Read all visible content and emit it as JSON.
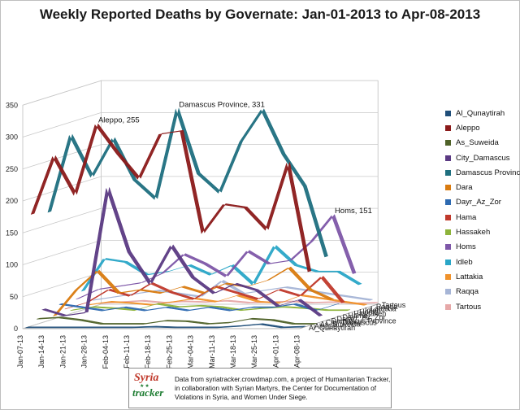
{
  "chart_data": {
    "type": "line",
    "title": "Weekly Reported Deaths by Governate: Jan-01-2013 to Apr-08-2013",
    "categories": [
      "Jan-07-13",
      "Jan-14-13",
      "Jan-21-13",
      "Jan-28-13",
      "Feb-04-13",
      "Feb-11-13",
      "Feb-18-13",
      "Feb-25-13",
      "Mar-04-13",
      "Mar-11-13",
      "Mar-18-13",
      "Mar-25-13",
      "Apr-01-13",
      "Apr-08-13"
    ],
    "yticks": [
      0,
      50,
      100,
      150,
      200,
      250,
      300,
      350
    ],
    "ylim": [
      0,
      350
    ],
    "grid": true,
    "legend_position": "right",
    "series": [
      {
        "name": "Al_Qunaytirah",
        "color": "#1f4e79",
        "values": [
          0,
          0,
          0,
          0,
          0,
          0,
          1,
          0,
          0,
          0,
          2,
          5,
          0,
          1
        ]
      },
      {
        "name": "Aleppo",
        "color": "#8b1a1a",
        "values": [
          175,
          265,
          205,
          315,
          270,
          230,
          300,
          305,
          145,
          190,
          185,
          150,
          255,
          85
        ]
      },
      {
        "name": "As_Suweida",
        "color": "#4f6228",
        "values": [
          8,
          10,
          6,
          0,
          0,
          0,
          5,
          4,
          0,
          2,
          8,
          6,
          0,
          0
        ]
      },
      {
        "name": "City_Damascus",
        "color": "#5b3a83",
        "values": [
          20,
          10,
          15,
          210,
          110,
          60,
          120,
          70,
          45,
          60,
          50,
          25,
          35,
          10
        ]
      },
      {
        "name": "Damascus Province",
        "color": "#1f6f7f",
        "values": [
          170,
          290,
          225,
          285,
          220,
          190,
          331,
          230,
          200,
          280,
          330,
          260,
          210,
          100
        ]
      },
      {
        "name": "Dara",
        "color": "#d97b10",
        "values": [
          5,
          45,
          75,
          40,
          45,
          40,
          50,
          40,
          55,
          50,
          60,
          80,
          45,
          30
        ]
      },
      {
        "name": "Dayr_Az_Zor",
        "color": "#2e6ab1",
        "values": [
          20,
          15,
          10,
          15,
          10,
          15,
          10,
          15,
          10,
          15,
          15,
          20,
          10,
          20
        ]
      },
      {
        "name": "Hama",
        "color": "#c0392b",
        "values": [
          10,
          20,
          40,
          30,
          50,
          35,
          25,
          45,
          35,
          25,
          40,
          30,
          60,
          20
        ]
      },
      {
        "name": "Hassakeh",
        "color": "#8db33a",
        "values": [
          5,
          10,
          8,
          5,
          15,
          10,
          12,
          10,
          5,
          8,
          10,
          8,
          5,
          5
        ]
      },
      {
        "name": "Homs",
        "color": "#7e57a8",
        "values": [
          20,
          35,
          40,
          45,
          60,
          90,
          75,
          55,
          95,
          75,
          80,
          110,
          151,
          60
        ]
      },
      {
        "name": "Idleb",
        "color": "#2aa6c7",
        "values": [
          30,
          80,
          75,
          55,
          60,
          70,
          55,
          70,
          40,
          100,
          70,
          60,
          60,
          40
        ]
      },
      {
        "name": "Lattakia",
        "color": "#f0922b",
        "values": [
          5,
          10,
          8,
          5,
          10,
          15,
          10,
          20,
          10,
          8,
          20,
          15,
          10,
          5
        ]
      },
      {
        "name": "Raqqa",
        "color": "#a6b5d6",
        "values": [
          10,
          15,
          20,
          25,
          20,
          15,
          40,
          20,
          25,
          30,
          25,
          20,
          15,
          10
        ]
      },
      {
        "name": "Tartous",
        "color": "#e6a8a8",
        "values": [
          2,
          4,
          6,
          3,
          5,
          4,
          6,
          3,
          4,
          5,
          3,
          4,
          2,
          3
        ]
      }
    ],
    "annotations": [
      {
        "series": "Damascus Province",
        "text": "Damascus Province, 331"
      },
      {
        "series": "Aleppo",
        "text": "Aleppo, 255"
      },
      {
        "series": "Homs",
        "text": "Homs, 151"
      }
    ]
  },
  "footer": {
    "logo_top": "Syria",
    "logo_bottom": "tracker",
    "text": "Data from syriatracker.crowdmap.com, a project of Humanitarian Tracker, in collaboration with Syrian Martyrs, the Center for Documentation of Violations in Syria, and Women Under Siege."
  }
}
